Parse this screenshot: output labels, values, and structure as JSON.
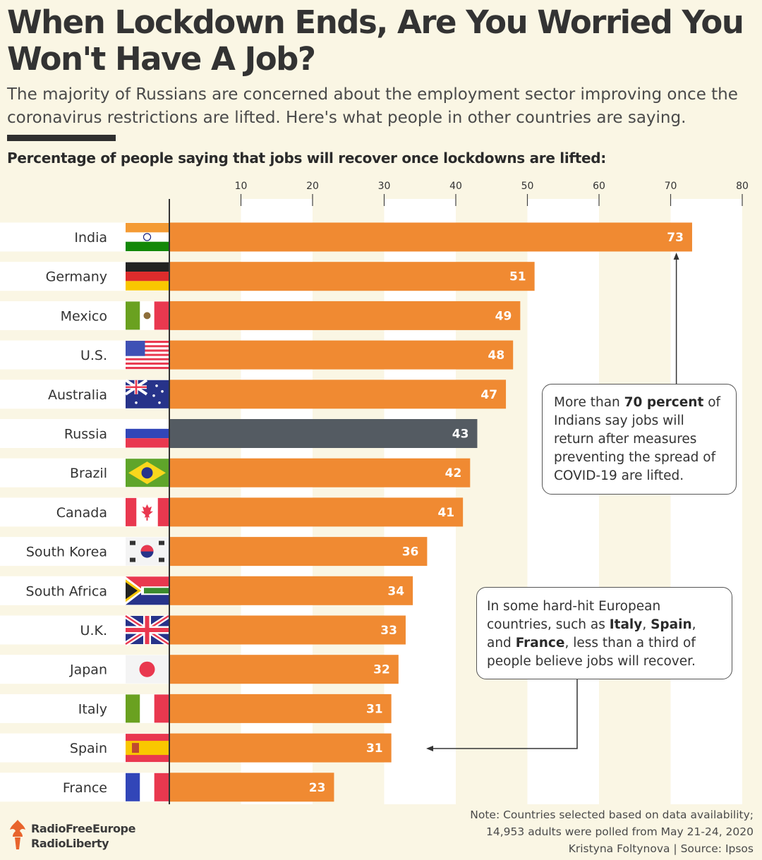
{
  "header": {
    "title": "When Lockdown Ends, Are You Worried You Won't Have A Job?",
    "subtitle": "The majority of Russians are concerned about the employment sector improving once the coronavirus restrictions are lifted. Here's what people in other countries are saying.",
    "chart_heading": "Percentage of people saying that jobs will recover once lockdowns are lifted:"
  },
  "chart_data": {
    "type": "bar",
    "orientation": "horizontal",
    "title": "Percentage of people saying that jobs will recover once lockdowns are lifted:",
    "categories": [
      "India",
      "Germany",
      "Mexico",
      "U.S.",
      "Australia",
      "Russia",
      "Brazil",
      "Canada",
      "South Korea",
      "South Africa",
      "U.K.",
      "Japan",
      "Italy",
      "Spain",
      "France"
    ],
    "values": [
      73,
      51,
      49,
      48,
      47,
      43,
      42,
      41,
      36,
      34,
      33,
      32,
      31,
      31,
      23
    ],
    "highlight": "Russia",
    "xlim": [
      0,
      80
    ],
    "xticks": [
      10,
      20,
      30,
      40,
      50,
      60,
      70,
      80
    ],
    "axis_position": "top",
    "data_labels": true,
    "grid": "alternating vertical bands"
  },
  "colors": {
    "bar": "#f08a32",
    "bar_highlight": "#545b62",
    "background": "#faf6e4",
    "band": "#ffffff"
  },
  "flags": [
    "india-flag-icon",
    "germany-flag-icon",
    "mexico-flag-icon",
    "us-flag-icon",
    "australia-flag-icon",
    "russia-flag-icon",
    "brazil-flag-icon",
    "canada-flag-icon",
    "south-korea-flag-icon",
    "south-africa-flag-icon",
    "uk-flag-icon",
    "japan-flag-icon",
    "italy-flag-icon",
    "spain-flag-icon",
    "france-flag-icon"
  ],
  "callouts": {
    "india": {
      "t1": "More than ",
      "b1": "70 percent",
      "t2": " of Indians say jobs will return after measures preventing the spread of COVID-19 are lifted."
    },
    "europe": {
      "t1": "In some hard-hit European countries, such as ",
      "b1": "Italy",
      "t2": ", ",
      "b2": "Spain",
      "t3": ", and ",
      "b3": "France",
      "t4": ", less than a third of people believe jobs will recover."
    }
  },
  "footer": {
    "note_line1": "Note: Countries selected based on data availability;",
    "note_line2": "14,953 adults were polled from May 21-24, 2020",
    "credit": "Kristyna Foltynova | Source: Ipsos",
    "logo_line1": "RadioFreeEurope",
    "logo_line2": "RadioLiberty"
  }
}
